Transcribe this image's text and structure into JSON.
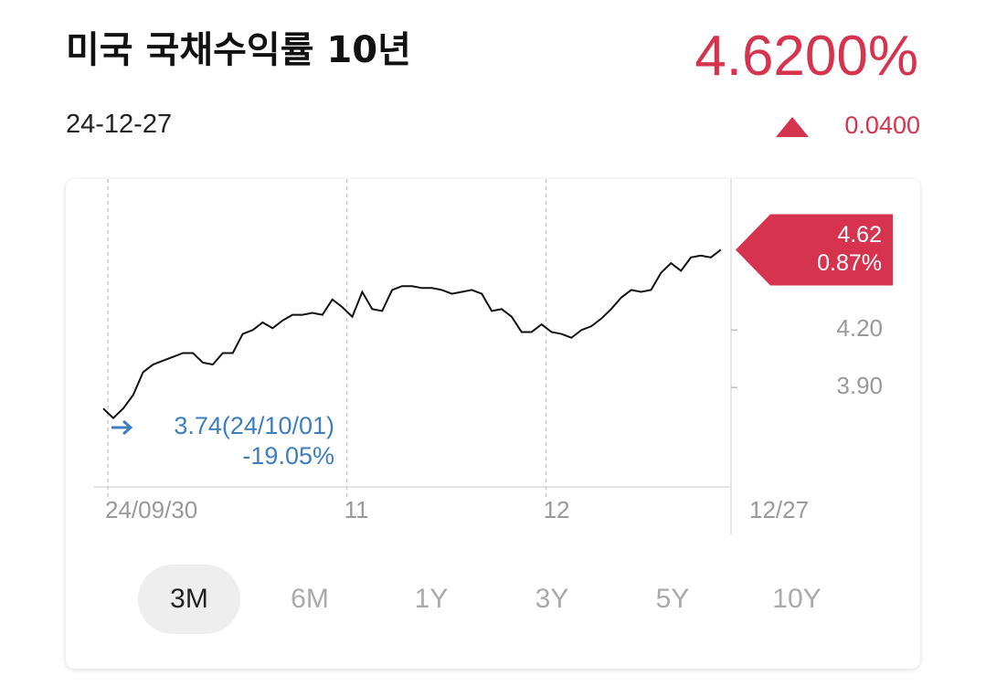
{
  "header": {
    "title": "미국 국채수익률 10년",
    "price": "4.6200%",
    "date": "24-12-27",
    "change": "0.0400"
  },
  "chart_data": {
    "type": "line",
    "categories": [
      "24/09/30",
      null,
      null,
      null,
      null,
      null,
      null,
      null,
      null,
      null,
      null,
      null,
      null,
      null,
      null,
      null,
      null,
      null,
      null,
      null,
      null,
      null,
      null,
      null,
      "11",
      null,
      null,
      null,
      null,
      null,
      null,
      null,
      null,
      null,
      null,
      null,
      null,
      null,
      null,
      null,
      null,
      null,
      null,
      null,
      "12",
      null,
      null,
      null,
      null,
      null,
      null,
      null,
      null,
      null,
      null,
      null,
      null,
      null,
      null,
      null,
      null,
      null,
      "12/27"
    ],
    "series": [
      {
        "color": "#111111",
        "values": [
          3.79,
          3.74,
          3.79,
          3.86,
          3.98,
          4.02,
          4.04,
          4.06,
          4.08,
          4.08,
          4.03,
          4.02,
          4.08,
          4.08,
          4.18,
          4.2,
          4.24,
          4.21,
          4.25,
          4.28,
          4.28,
          4.29,
          4.28,
          4.36,
          4.32,
          4.27,
          4.4,
          4.31,
          4.3,
          4.41,
          4.43,
          4.43,
          4.42,
          4.42,
          4.41,
          4.39,
          4.4,
          4.41,
          4.39,
          4.3,
          4.31,
          4.27,
          4.19,
          4.19,
          4.23,
          4.19,
          4.18,
          4.16,
          4.2,
          4.22,
          4.26,
          4.31,
          4.37,
          4.41,
          4.4,
          4.41,
          4.5,
          4.55,
          4.51,
          4.58,
          4.59,
          4.58,
          4.62
        ]
      }
    ],
    "ylim": [
      3.38,
      4.99
    ],
    "yticks": [
      {
        "value": 4.2,
        "label": "4.20"
      },
      {
        "value": 3.9,
        "label": "3.90"
      }
    ],
    "last_change": "0.87%",
    "min_label": "3.74(24/10/01)",
    "min_change": "-19.05%",
    "ranges": [
      "3M",
      "6M",
      "1Y",
      "3Y",
      "5Y",
      "10Y"
    ],
    "selected_range": "3M"
  }
}
